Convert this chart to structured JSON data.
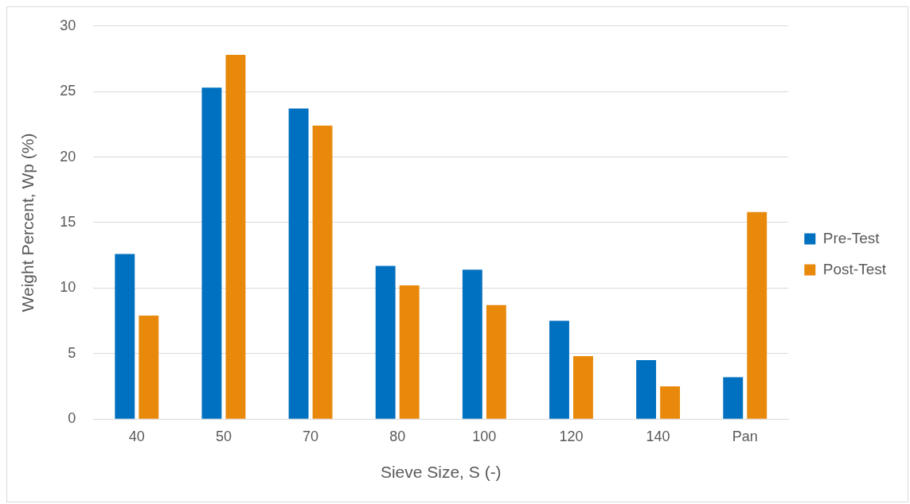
{
  "chart_data": {
    "type": "bar",
    "categories": [
      "40",
      "50",
      "70",
      "80",
      "100",
      "120",
      "140",
      "Pan"
    ],
    "series": [
      {
        "name": "Pre-Test",
        "color": "#0070c0",
        "values": [
          12.6,
          25.3,
          23.7,
          11.7,
          11.4,
          7.5,
          4.5,
          3.2
        ]
      },
      {
        "name": "Post-Test",
        "color": "#e8890c",
        "values": [
          7.9,
          27.8,
          22.4,
          10.2,
          8.7,
          4.8,
          2.5,
          15.8
        ]
      }
    ],
    "xlabel": "Sieve Size, S (-)",
    "ylabel": "Weight Percent, Wp (%)",
    "ylim": [
      0,
      30
    ],
    "yticks": [
      0,
      5,
      10,
      15,
      20,
      25,
      30
    ],
    "grid": "y",
    "legend": "right"
  }
}
